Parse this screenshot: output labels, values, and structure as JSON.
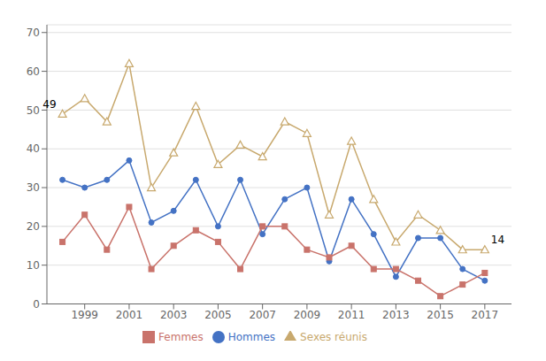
{
  "chart_data": {
    "type": "line",
    "x": [
      1998,
      1999,
      2000,
      2001,
      2002,
      2003,
      2004,
      2005,
      2006,
      2007,
      2008,
      2009,
      2010,
      2011,
      2012,
      2013,
      2014,
      2015,
      2016,
      2017
    ],
    "series": [
      {
        "name": "Hommes",
        "color": "#4472c4",
        "marker": "circle",
        "values": [
          32,
          30,
          32,
          37,
          21,
          24,
          32,
          20,
          32,
          18,
          27,
          30,
          11,
          27,
          18,
          7,
          17,
          17,
          9,
          6
        ]
      },
      {
        "name": "Femmes",
        "color": "#c9736b",
        "marker": "square",
        "values": [
          16,
          23,
          14,
          25,
          9,
          15,
          19,
          16,
          9,
          20,
          20,
          14,
          12,
          15,
          9,
          9,
          6,
          2,
          5,
          8
        ]
      },
      {
        "name": "Sexes réunis",
        "color": "#c8a96e",
        "marker": "triangle",
        "values": [
          49,
          53,
          47,
          62,
          30,
          39,
          51,
          36,
          41,
          38,
          47,
          44,
          23,
          42,
          27,
          16,
          23,
          19,
          14,
          14
        ]
      }
    ],
    "annotations": [
      {
        "text": "49",
        "x": 1998,
        "y": 49,
        "side": "left"
      },
      {
        "text": "14",
        "x": 2017,
        "y": 14,
        "side": "right"
      }
    ],
    "xlim": [
      1997.3,
      2018.2
    ],
    "xticks": [
      1999,
      2001,
      2003,
      2005,
      2007,
      2009,
      2011,
      2013,
      2015,
      2017
    ],
    "ylim": [
      0,
      72
    ],
    "yticks": [
      0,
      10,
      20,
      30,
      40,
      50,
      60,
      70
    ],
    "grid": "y",
    "legend": "bottom"
  }
}
